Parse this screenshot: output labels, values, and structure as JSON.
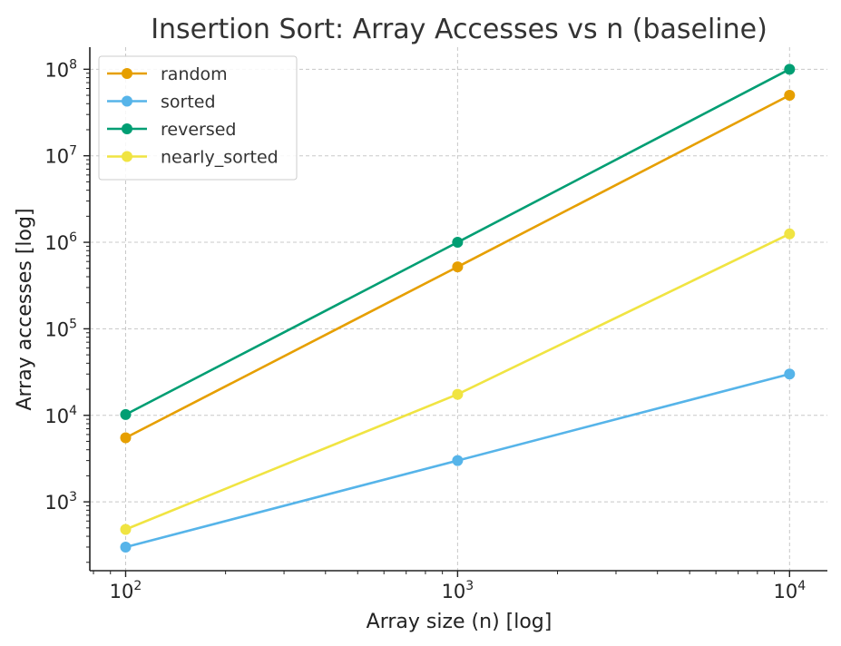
{
  "chart_data": {
    "type": "line",
    "title": "Insertion Sort: Array Accesses vs n (baseline)",
    "xlabel": "Array size (n) [log]",
    "ylabel": "Array accesses [log]",
    "x_scale": "log",
    "y_scale": "log",
    "x": [
      100,
      1000,
      10000
    ],
    "xlim": [
      78,
      13000
    ],
    "ylim": [
      160,
      180000000
    ],
    "x_ticks": [
      {
        "base": "10",
        "exp": "2"
      },
      {
        "base": "10",
        "exp": "3"
      },
      {
        "base": "10",
        "exp": "4"
      }
    ],
    "y_ticks": [
      {
        "base": "10",
        "exp": "3"
      },
      {
        "base": "10",
        "exp": "4"
      },
      {
        "base": "10",
        "exp": "5"
      },
      {
        "base": "10",
        "exp": "6"
      },
      {
        "base": "10",
        "exp": "7"
      },
      {
        "base": "10",
        "exp": "8"
      }
    ],
    "grid": true,
    "legend_position": "top-left",
    "series": [
      {
        "name": "random",
        "color": "#E69F00",
        "values": [
          5500,
          520000,
          50000000
        ]
      },
      {
        "name": "sorted",
        "color": "#56B4E9",
        "values": [
          300,
          3000,
          30000
        ]
      },
      {
        "name": "reversed",
        "color": "#009E73",
        "values": [
          10200,
          1000000,
          100000000
        ]
      },
      {
        "name": "nearly_sorted",
        "color": "#F0E442",
        "values": [
          480,
          17500,
          1250000
        ]
      }
    ]
  }
}
